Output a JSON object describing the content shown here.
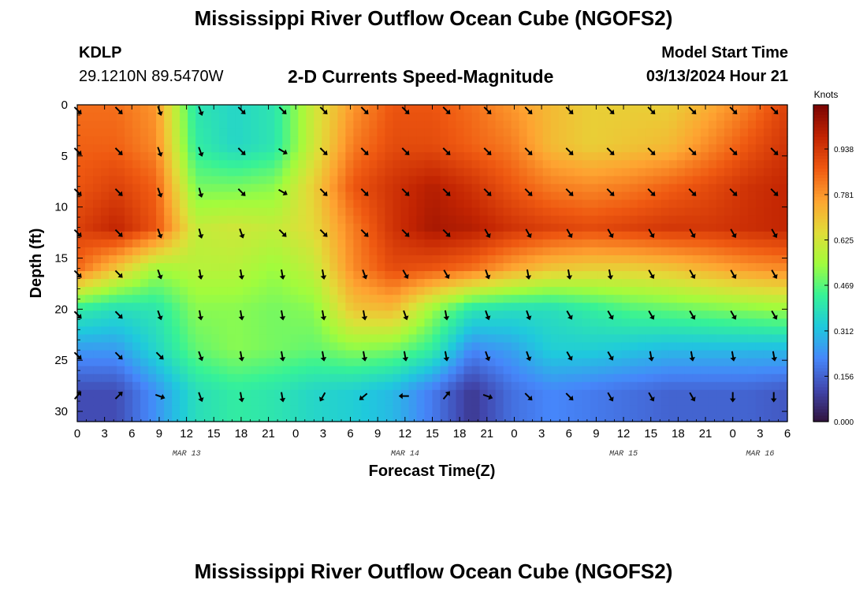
{
  "page": {
    "title": "Mississippi River Outflow Ocean Cube (NGOFS2)",
    "footer_title": "Mississippi River Outflow Ocean Cube (NGOFS2)",
    "station_id": "KDLP",
    "station_coords": "29.1210N  89.5470W",
    "subtitle": "2-D Currents Speed-Magnitude",
    "model_start_label": "Model Start Time",
    "model_start_value": "03/13/2024 Hour 21"
  },
  "colors": {
    "colormap": [
      "#30123b",
      "#4146ac",
      "#4686fa",
      "#1fc9dd",
      "#36f297",
      "#a2fc3c",
      "#e2dc38",
      "#fea331",
      "#ef5911",
      "#c22402",
      "#7a0403"
    ]
  },
  "chart_data": {
    "type": "heatmap",
    "title": "2-D Currents Speed-Magnitude",
    "xlabel": "Forecast Time(Z)",
    "ylabel": "Depth (ft)",
    "x_hours": [
      0,
      3,
      6,
      9,
      12,
      15,
      18,
      21,
      24,
      27,
      30,
      33,
      36,
      39,
      42,
      45,
      48,
      51,
      54,
      57,
      60,
      63,
      66,
      69,
      72,
      75,
      78
    ],
    "xlim": [
      0,
      78
    ],
    "x_tick_labels": [
      "0",
      "3",
      "6",
      "9",
      "12",
      "15",
      "18",
      "21",
      "0",
      "3",
      "6",
      "9",
      "12",
      "15",
      "18",
      "21",
      "0",
      "3",
      "6",
      "9",
      "12",
      "15",
      "18",
      "21",
      "0",
      "3",
      "6"
    ],
    "date_labels": [
      {
        "label": "MAR 13",
        "hour": 12
      },
      {
        "label": "MAR 14",
        "hour": 36
      },
      {
        "label": "MAR 15",
        "hour": 60
      },
      {
        "label": "MAR 16",
        "hour": 75
      }
    ],
    "depths": [
      0,
      4,
      8,
      12,
      16,
      20,
      24,
      28
    ],
    "ylim": [
      0,
      31
    ],
    "y_ticks": [
      "0",
      "5",
      "10",
      "15",
      "20",
      "25",
      "30"
    ],
    "speed_knots": [
      [
        0.84,
        0.84,
        0.78,
        0.4,
        0.36,
        0.4,
        0.62,
        0.78,
        0.88,
        0.88,
        0.84,
        0.78,
        0.72,
        0.68,
        0.68,
        0.68,
        0.74,
        0.82,
        0.92
      ],
      [
        0.86,
        0.86,
        0.8,
        0.42,
        0.36,
        0.4,
        0.62,
        0.82,
        0.9,
        0.9,
        0.86,
        0.82,
        0.72,
        0.68,
        0.7,
        0.72,
        0.8,
        0.88,
        0.95
      ],
      [
        0.88,
        0.92,
        0.86,
        0.5,
        0.5,
        0.52,
        0.68,
        0.88,
        0.95,
        1.0,
        0.95,
        0.88,
        0.82,
        0.8,
        0.82,
        0.86,
        0.9,
        0.95,
        0.98
      ],
      [
        0.92,
        0.98,
        0.88,
        0.6,
        0.62,
        0.6,
        0.66,
        0.82,
        0.95,
        1.02,
        1.0,
        0.95,
        0.92,
        0.9,
        0.92,
        0.94,
        0.94,
        0.96,
        0.98
      ],
      [
        0.85,
        0.7,
        0.55,
        0.58,
        0.58,
        0.54,
        0.6,
        0.8,
        0.9,
        0.88,
        0.84,
        0.76,
        0.7,
        0.68,
        0.68,
        0.7,
        0.74,
        0.78,
        0.8
      ],
      [
        0.42,
        0.38,
        0.4,
        0.52,
        0.52,
        0.5,
        0.52,
        0.7,
        0.72,
        0.54,
        0.4,
        0.38,
        0.38,
        0.42,
        0.46,
        0.48,
        0.5,
        0.52,
        0.54
      ],
      [
        0.25,
        0.25,
        0.36,
        0.48,
        0.52,
        0.5,
        0.48,
        0.52,
        0.5,
        0.42,
        0.22,
        0.26,
        0.34,
        0.34,
        0.32,
        0.3,
        0.3,
        0.3,
        0.3
      ],
      [
        0.12,
        0.12,
        0.24,
        0.38,
        0.42,
        0.4,
        0.36,
        0.34,
        0.3,
        0.2,
        0.08,
        0.18,
        0.22,
        0.2,
        0.18,
        0.16,
        0.16,
        0.16,
        0.14
      ]
    ],
    "arrow_rows_depth": [
      0.5,
      4.5,
      8.5,
      12.5,
      16.5,
      20.5,
      24.5,
      28.5
    ],
    "arrow_cols_hours": [
      0,
      4.5,
      9,
      13.5,
      18,
      22.5,
      27,
      31.5,
      36,
      40.5,
      45,
      49.5,
      54,
      58.5,
      63,
      67.5,
      72,
      76.5
    ],
    "arrow_directions_deg": [
      [
        135,
        135,
        160,
        160,
        135,
        135,
        135,
        135,
        135,
        135,
        135,
        135,
        135,
        135,
        135,
        135,
        135,
        135
      ],
      [
        135,
        135,
        160,
        160,
        135,
        120,
        135,
        135,
        135,
        135,
        135,
        135,
        135,
        135,
        135,
        135,
        135,
        135
      ],
      [
        135,
        135,
        160,
        165,
        135,
        120,
        135,
        135,
        135,
        135,
        135,
        135,
        135,
        135,
        135,
        135,
        135,
        135
      ],
      [
        135,
        135,
        160,
        165,
        160,
        135,
        135,
        135,
        135,
        135,
        150,
        150,
        150,
        150,
        150,
        150,
        150,
        150
      ],
      [
        135,
        135,
        160,
        170,
        170,
        170,
        170,
        160,
        150,
        150,
        160,
        170,
        170,
        170,
        150,
        150,
        150,
        150
      ],
      [
        135,
        135,
        160,
        170,
        170,
        170,
        170,
        170,
        160,
        170,
        160,
        160,
        150,
        150,
        150,
        150,
        150,
        150
      ],
      [
        135,
        135,
        135,
        160,
        170,
        170,
        170,
        170,
        170,
        170,
        160,
        160,
        150,
        150,
        170,
        170,
        170,
        170
      ],
      [
        40,
        45,
        110,
        160,
        170,
        170,
        210,
        230,
        270,
        40,
        110,
        135,
        135,
        150,
        150,
        150,
        180,
        180
      ]
    ],
    "colorbar": {
      "label": "Knots",
      "range": [
        0,
        1.09
      ],
      "tick_values": [
        0.0,
        0.156,
        0.312,
        0.469,
        0.625,
        0.781,
        0.938
      ],
      "tick_labels": [
        "0.000",
        "0.156",
        "0.312",
        "0.469",
        "0.625",
        "0.781",
        "0.938"
      ]
    }
  }
}
